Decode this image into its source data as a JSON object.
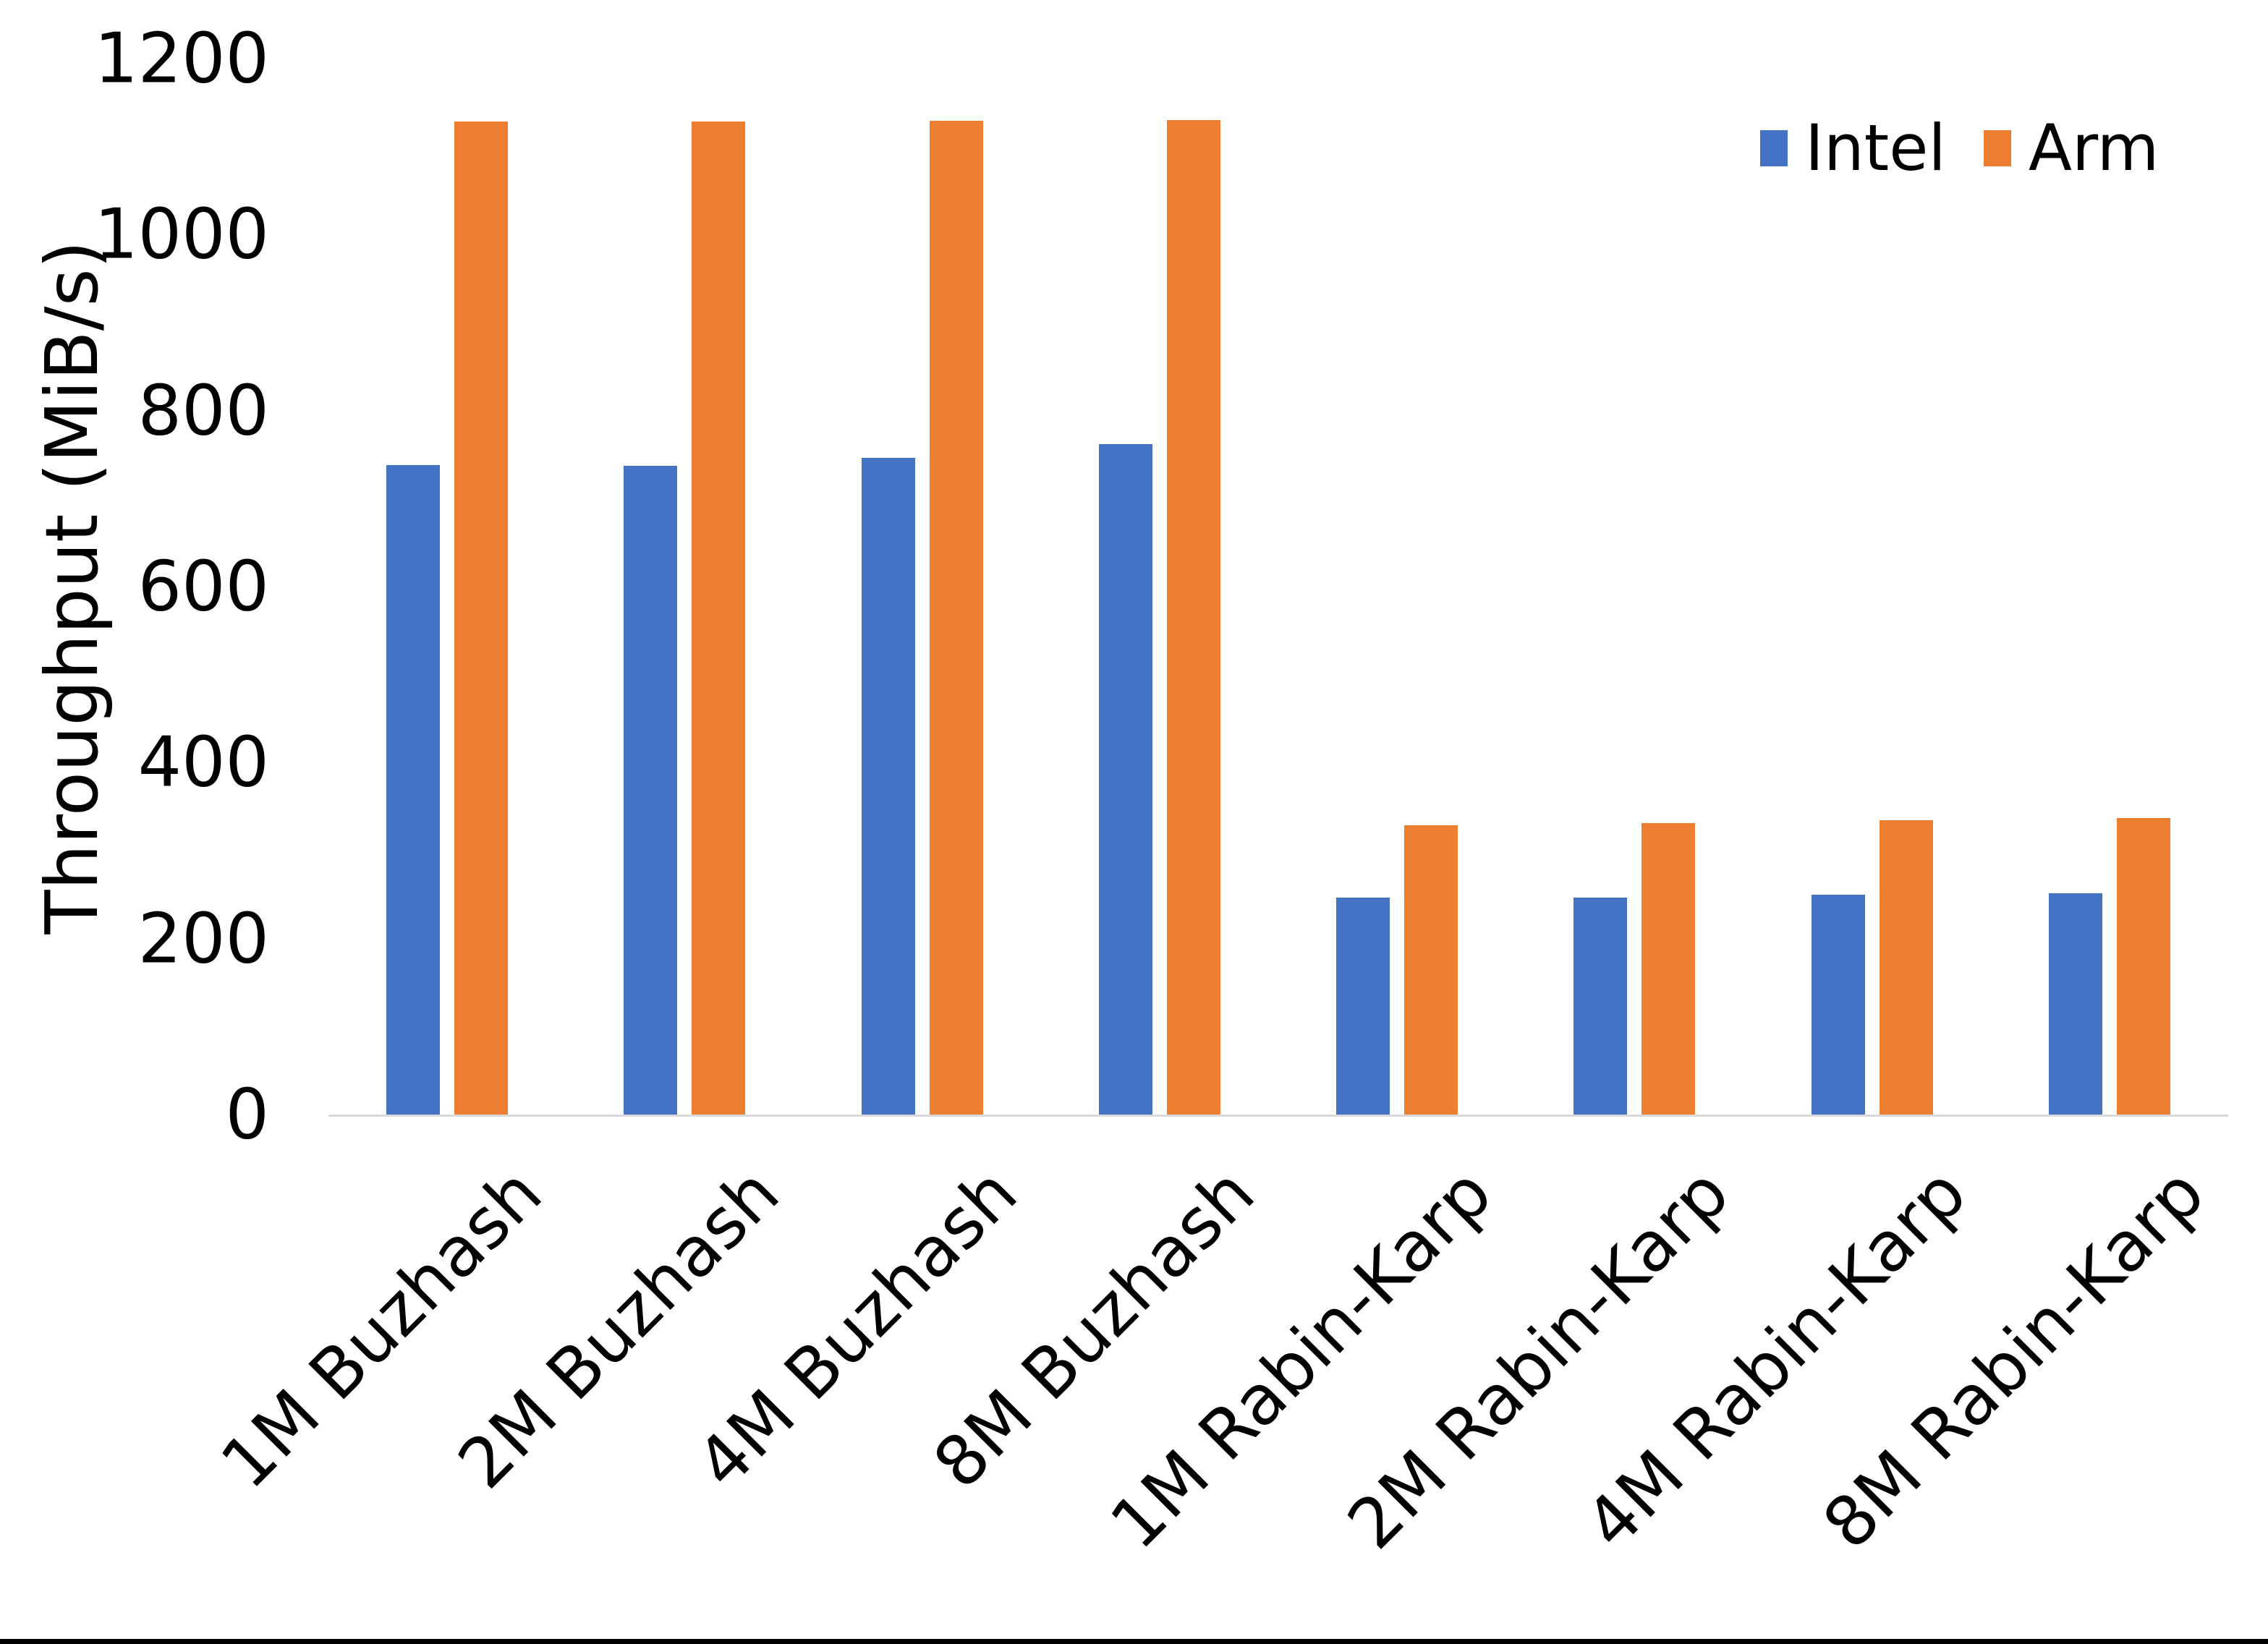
{
  "chart_data": {
    "type": "bar",
    "title": "",
    "xlabel": "",
    "ylabel": "Throughput (MiB/s)",
    "categories": [
      "1M Buzhash",
      "2M Buzhash",
      "4M Buzhash",
      "8M Buzhash",
      "1M Rabin-Karp",
      "2M Rabin-Karp",
      "4M Rabin-Karp",
      "8M Rabin-Karp"
    ],
    "series": [
      {
        "name": "Intel",
        "color": "#4472C4",
        "values": [
          739,
          738,
          747,
          763,
          247,
          247,
          251,
          252
        ]
      },
      {
        "name": "Arm",
        "color": "#ED7D31",
        "values": [
          1129,
          1129,
          1130,
          1131,
          330,
          332,
          335,
          338
        ]
      }
    ],
    "ylim": [
      0,
      1200
    ],
    "yticks": [
      0,
      200,
      400,
      600,
      800,
      1000,
      1200
    ],
    "grid": false,
    "legend_position": "top-right"
  },
  "colors": {
    "axis_line": "#D9D9D9",
    "text": "#000000",
    "background": "#FFFFFF",
    "bottom_bar": "#000000"
  }
}
